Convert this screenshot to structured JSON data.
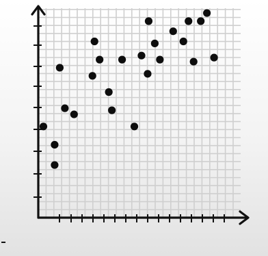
{
  "chart_data": {
    "type": "scatter",
    "title": "",
    "xlabel": "",
    "ylabel": "",
    "xlim": [
      0,
      19
    ],
    "ylim": [
      0,
      10
    ],
    "grid": true,
    "tick_labels": "none",
    "points": [
      {
        "x": 0.5,
        "y": 4.5
      },
      {
        "x": 1.6,
        "y": 3.6
      },
      {
        "x": 1.6,
        "y": 2.6
      },
      {
        "x": 2.1,
        "y": 7.4
      },
      {
        "x": 2.6,
        "y": 5.4
      },
      {
        "x": 3.5,
        "y": 5.1
      },
      {
        "x": 5.3,
        "y": 7.0
      },
      {
        "x": 5.5,
        "y": 8.7
      },
      {
        "x": 6.0,
        "y": 7.8
      },
      {
        "x": 6.9,
        "y": 6.2
      },
      {
        "x": 7.2,
        "y": 5.3
      },
      {
        "x": 8.2,
        "y": 7.8
      },
      {
        "x": 9.4,
        "y": 4.5
      },
      {
        "x": 10.1,
        "y": 8.0
      },
      {
        "x": 10.7,
        "y": 7.1
      },
      {
        "x": 10.8,
        "y": 9.7
      },
      {
        "x": 11.4,
        "y": 8.6
      },
      {
        "x": 11.9,
        "y": 7.8
      },
      {
        "x": 13.2,
        "y": 9.2
      },
      {
        "x": 14.2,
        "y": 8.7
      },
      {
        "x": 14.7,
        "y": 9.7
      },
      {
        "x": 15.2,
        "y": 7.7
      },
      {
        "x": 15.9,
        "y": 9.7
      },
      {
        "x": 16.5,
        "y": 10.1
      },
      {
        "x": 17.2,
        "y": 7.9
      }
    ]
  }
}
